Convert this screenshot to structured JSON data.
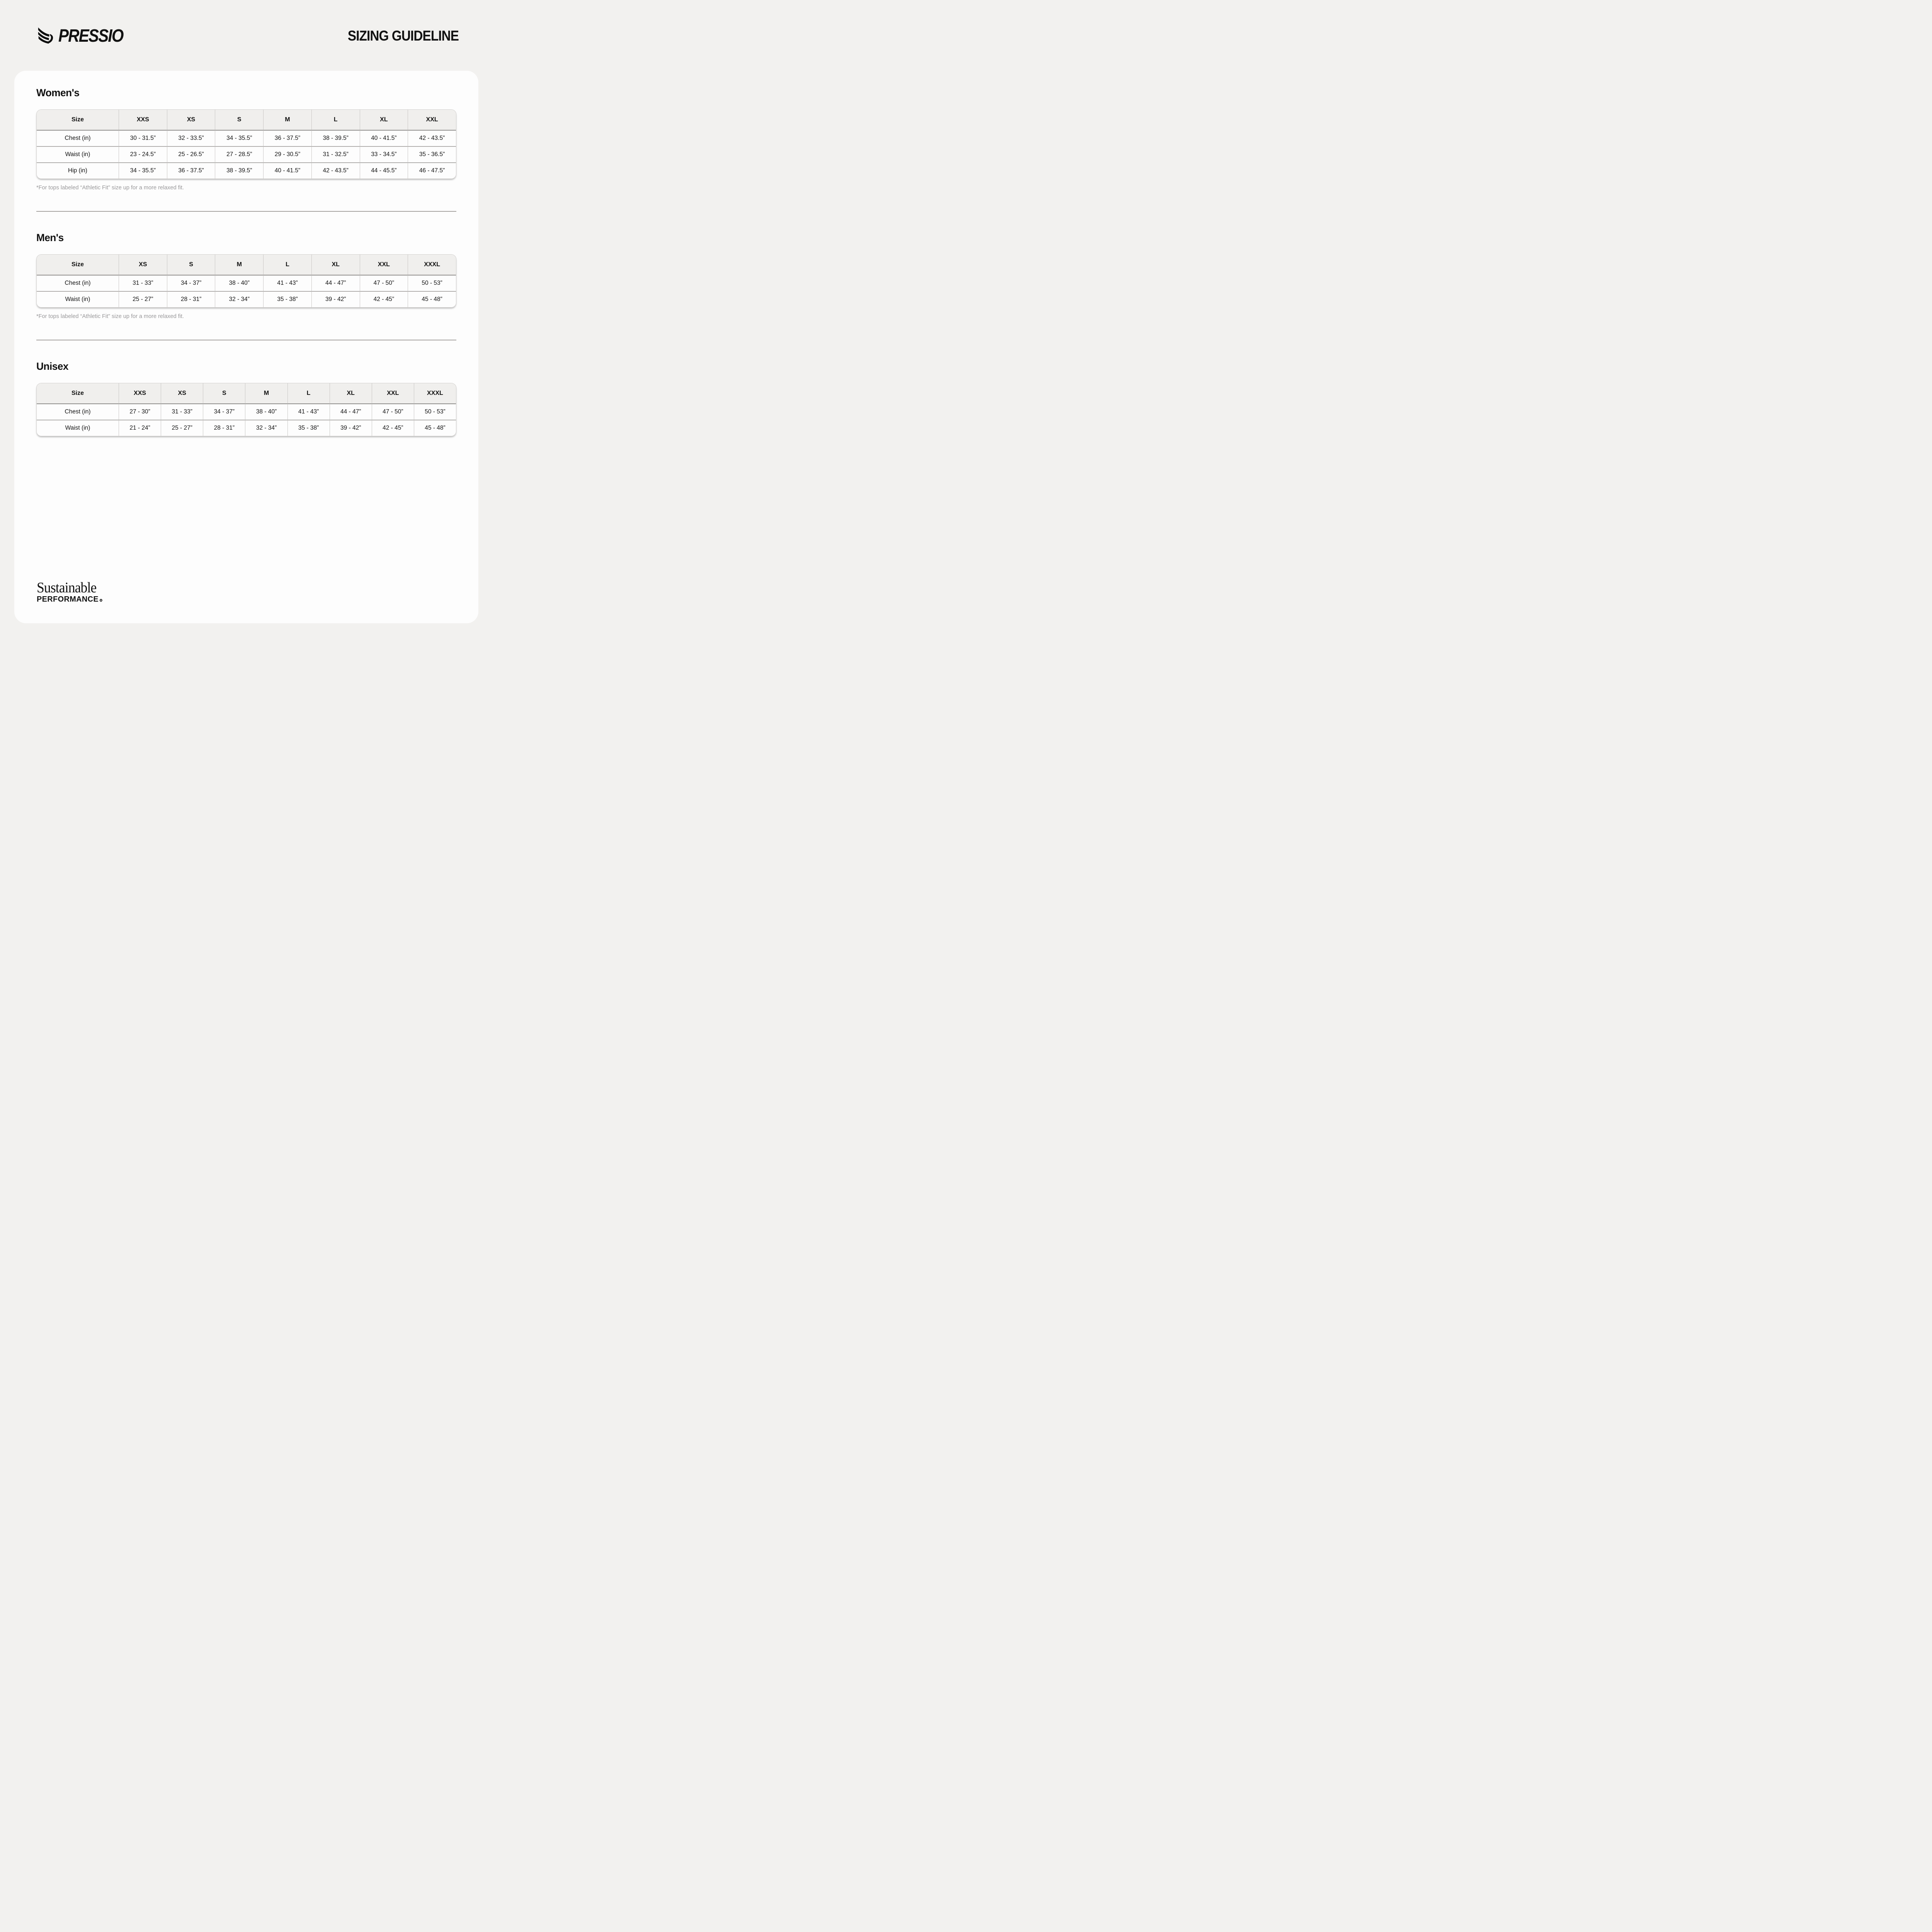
{
  "header": {
    "logo_text": "PRESSIO",
    "title": "SIZING GUIDELINE"
  },
  "sections": [
    {
      "heading": "Women's",
      "columns": [
        "Size",
        "XXS",
        "XS",
        "S",
        "M",
        "L",
        "XL",
        "XXL"
      ],
      "rows": [
        {
          "label": "Chest (in)",
          "values": [
            "30 - 31.5”",
            "32 - 33.5”",
            "34 - 35.5”",
            "36 - 37.5”",
            "38 - 39.5”",
            "40 - 41.5”",
            "42 - 43.5”"
          ]
        },
        {
          "label": "Waist (in)",
          "values": [
            "23 - 24.5”",
            "25 - 26.5”",
            "27 - 28.5”",
            "29 - 30.5”",
            "31 - 32.5”",
            "33 - 34.5”",
            "35 - 36.5”"
          ]
        },
        {
          "label": "Hip (in)",
          "values": [
            "34 - 35.5”",
            "36 - 37.5”",
            "38 - 39.5”",
            "40 - 41.5”",
            "42 - 43.5”",
            "44 - 45.5”",
            "46 - 47.5”"
          ]
        }
      ],
      "footnote": "*For tops labeled “Athletic Fit” size up for a more relaxed fit."
    },
    {
      "heading": "Men's",
      "columns": [
        "Size",
        "XS",
        "S",
        "M",
        "L",
        "XL",
        "XXL",
        "XXXL"
      ],
      "rows": [
        {
          "label": "Chest (in)",
          "values": [
            "31 - 33”",
            "34 - 37”",
            "38 - 40”",
            "41 - 43”",
            "44 - 47”",
            "47 - 50”",
            "50 - 53”"
          ]
        },
        {
          "label": "Waist (in)",
          "values": [
            "25 - 27”",
            "28 - 31”",
            "32 - 34”",
            "35 - 38”",
            "39 - 42”",
            "42 - 45”",
            "45 - 48”"
          ]
        }
      ],
      "footnote": "*For tops labeled “Athletic Fit” size up for a more relaxed fit."
    },
    {
      "heading": "Unisex",
      "columns": [
        "Size",
        "XXS",
        "XS",
        "S",
        "M",
        "L",
        "XL",
        "XXL",
        "XXXL"
      ],
      "rows": [
        {
          "label": "Chest (in)",
          "values": [
            "27 - 30”",
            "31 - 33”",
            "34 - 37”",
            "38 - 40”",
            "41 - 43”",
            "44 - 47”",
            "47 - 50”",
            "50 - 53”"
          ]
        },
        {
          "label": "Waist (in)",
          "values": [
            "21 - 24”",
            "25 - 27”",
            "28 - 31”",
            "32 - 34”",
            "35 - 38”",
            "39 - 42”",
            "42 - 45”",
            "45 - 48”"
          ]
        }
      ]
    }
  ],
  "footer": {
    "line1": "Sustainable",
    "line2": "PERFORMANCE"
  },
  "colors": {
    "page_bg": "#f2f1ef",
    "card_bg": "#fdfdfd",
    "text": "#121212",
    "muted_text": "#99989a",
    "table_header_bg": "#f0efed"
  }
}
